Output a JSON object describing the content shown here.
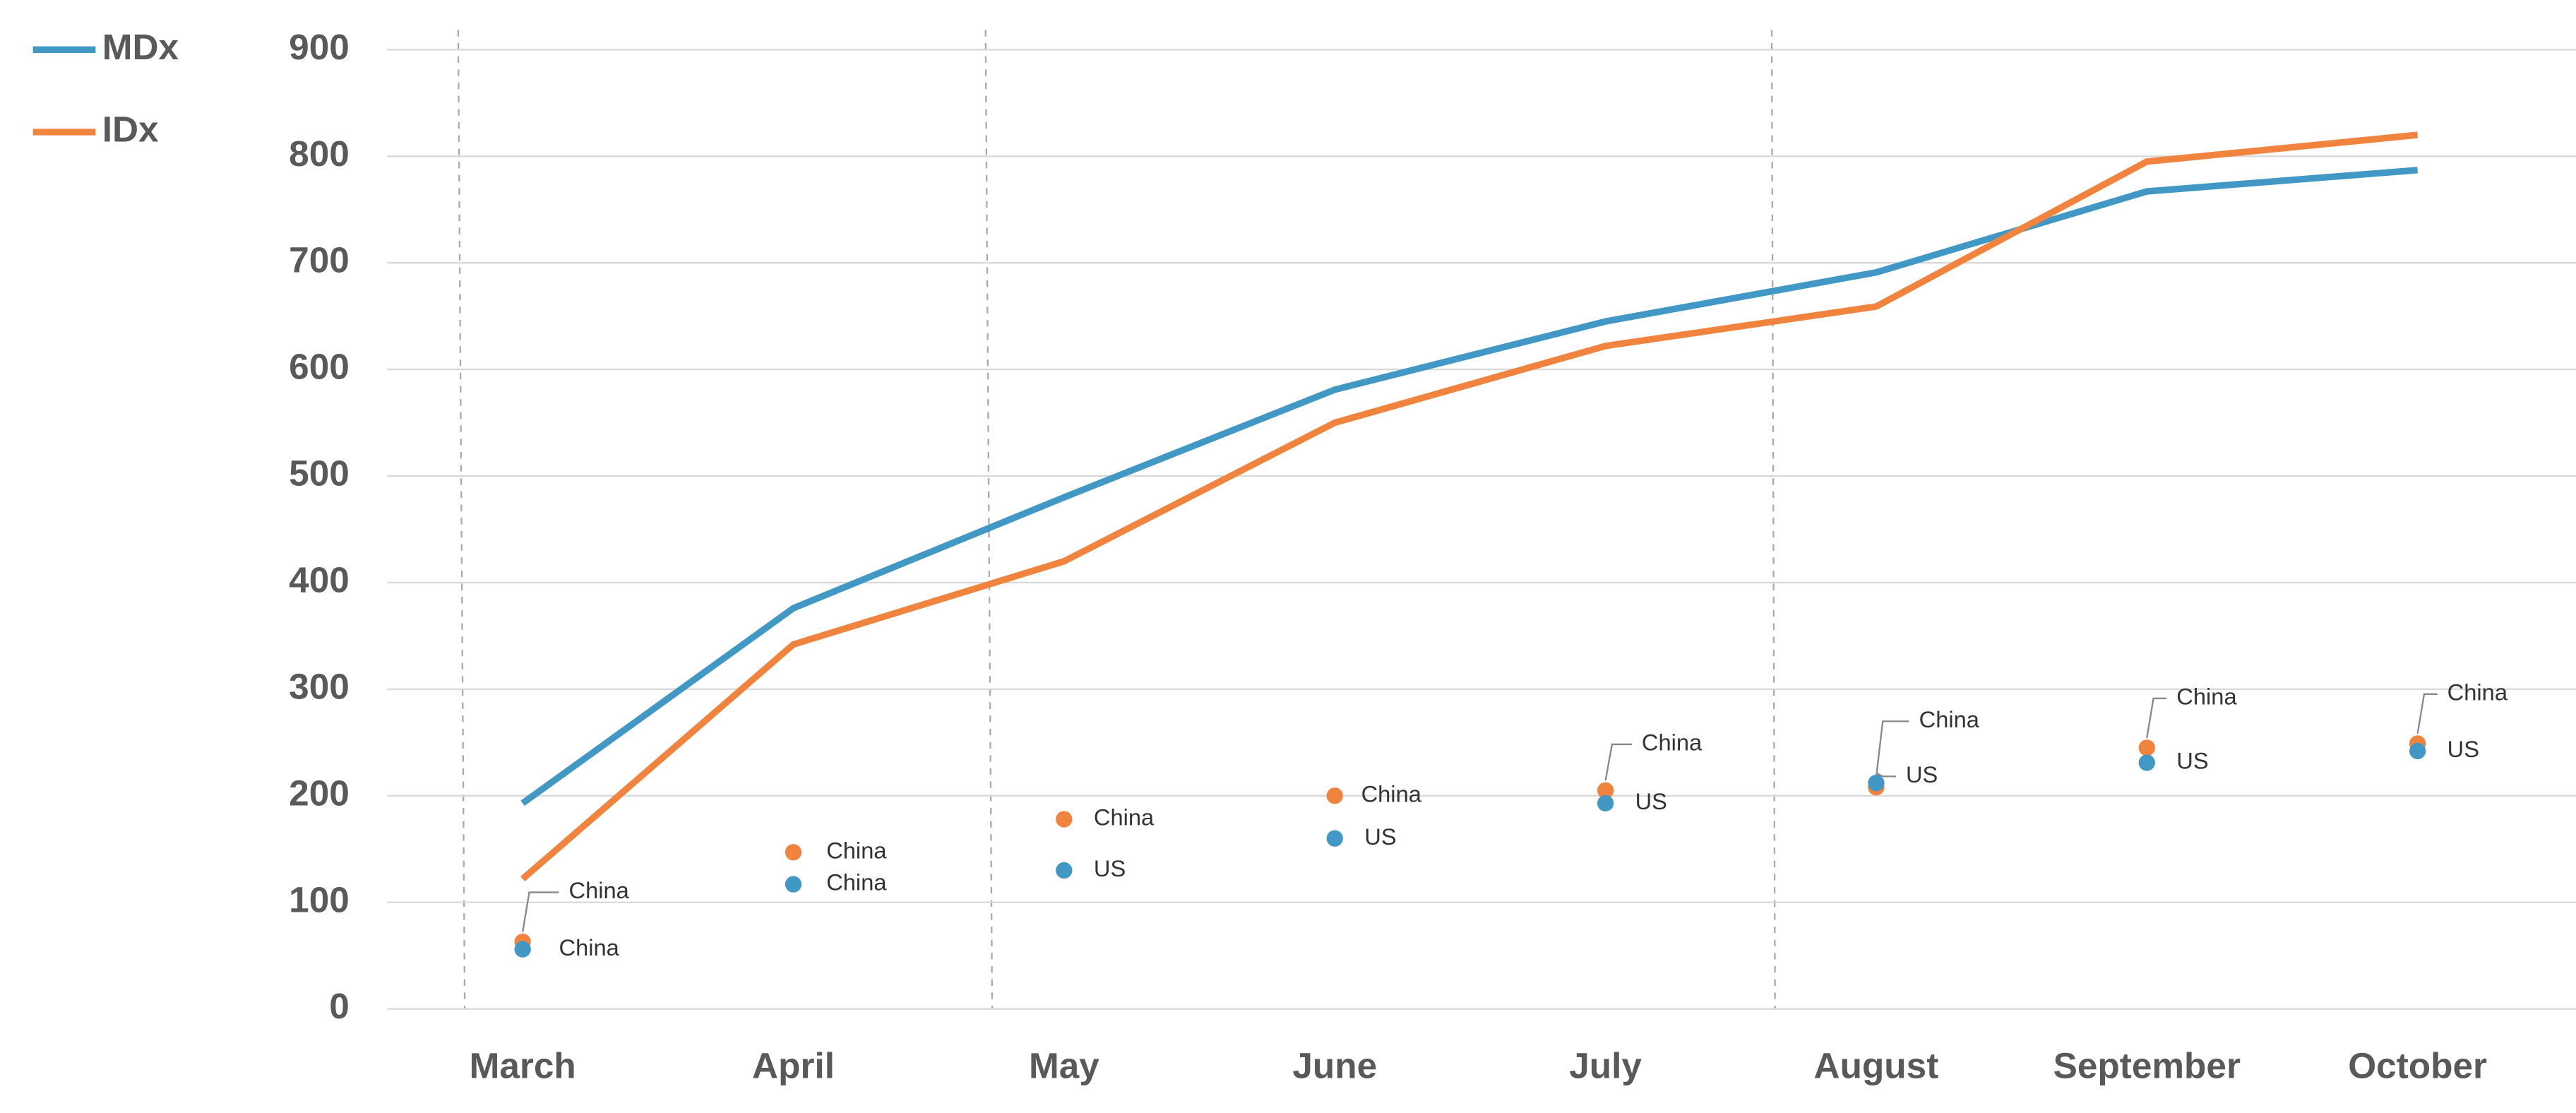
{
  "chart_data": {
    "type": "line",
    "categories": [
      "March",
      "April",
      "May",
      "June",
      "July",
      "August",
      "September",
      "October"
    ],
    "series": [
      {
        "name": "MDx",
        "color": "#4198c4",
        "values": [
          193,
          376,
          480,
          581,
          645,
          691,
          767,
          787
        ]
      },
      {
        "name": "IDx",
        "color": "#f0843f",
        "values": [
          122,
          342,
          420,
          550,
          622,
          659,
          795,
          820
        ]
      }
    ],
    "points": [
      {
        "color": "#f0843f",
        "values": [
          63,
          147,
          178,
          200,
          205,
          208,
          245,
          249
        ],
        "labels": [
          "China",
          "China",
          "China",
          "China",
          "China",
          "China",
          "China",
          "China"
        ]
      },
      {
        "color": "#4198c4",
        "values": [
          56,
          117,
          130,
          160,
          193,
          212,
          231,
          242
        ],
        "labels": [
          "China",
          "China",
          "US",
          "US",
          "US",
          "US",
          "US",
          "US"
        ]
      }
    ],
    "ylim": [
      0,
      900
    ],
    "yticks": [
      0,
      100,
      200,
      300,
      400,
      500,
      600,
      700,
      800,
      900
    ],
    "grid": true
  }
}
